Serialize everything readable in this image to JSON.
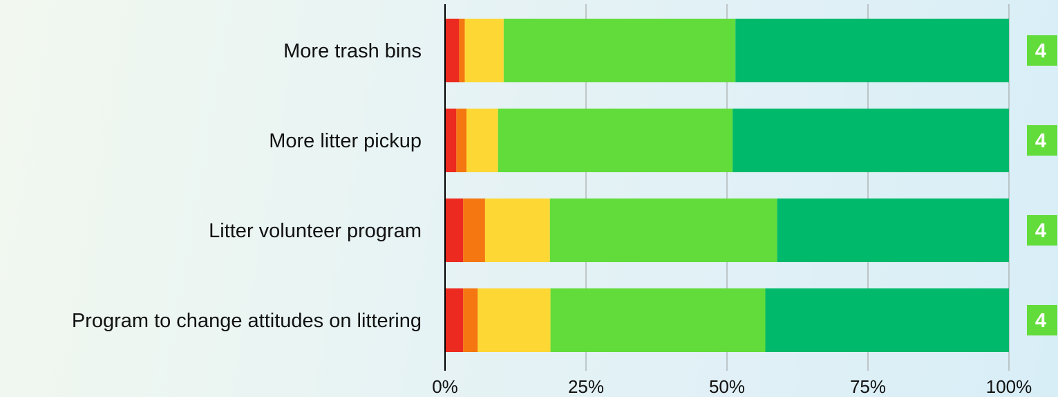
{
  "chart_data": {
    "type": "bar",
    "orientation": "horizontal",
    "stacked": true,
    "categories": [
      "More trash bins",
      "More litter pickup",
      "Litter volunteer program",
      "Program to change attitudes on littering"
    ],
    "series": [
      {
        "color": "#ed2a1f",
        "values": [
          2.5,
          2.0,
          3.2,
          3.2
        ]
      },
      {
        "color": "#f47711",
        "values": [
          1.0,
          1.8,
          3.9,
          2.6
        ]
      },
      {
        "color": "#fdd835",
        "values": [
          6.9,
          5.6,
          11.5,
          12.9
        ]
      },
      {
        "color": "#62dc3a",
        "values": [
          41.1,
          41.6,
          40.3,
          38.1
        ]
      },
      {
        "color": "#00b96b",
        "values": [
          48.5,
          49.0,
          41.1,
          43.2
        ]
      }
    ],
    "scores": [
      "4",
      "4",
      "4",
      "4"
    ],
    "score_color": "#62dc3a",
    "x_ticks": [
      "0%",
      "25%",
      "50%",
      "75%",
      "100%"
    ],
    "xlim": [
      0,
      100
    ],
    "grid": true,
    "title": "",
    "xlabel": "",
    "ylabel": ""
  }
}
